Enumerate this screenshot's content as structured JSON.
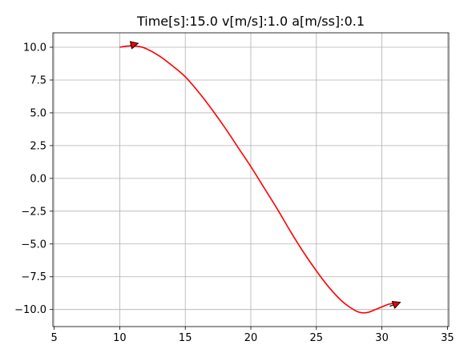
{
  "chart_data": {
    "type": "line",
    "title": "Time[s]:15.0 v[m/s]:1.0 a[m/ss]:0.1",
    "xlabel": "",
    "ylabel": "",
    "xlim": [
      4.9,
      35.1
    ],
    "ylim": [
      -11.3,
      11.1
    ],
    "grid": true,
    "xticks": [
      5,
      10,
      15,
      20,
      25,
      30,
      35
    ],
    "yticks": [
      10.0,
      7.5,
      5.0,
      2.5,
      0.0,
      -2.5,
      -5.0,
      -7.5,
      -10.0
    ],
    "xtick_labels": [
      "5",
      "10",
      "15",
      "20",
      "25",
      "30",
      "35"
    ],
    "ytick_labels": [
      "10.0",
      "7.5",
      "5.0",
      "2.5",
      "0.0",
      "−2.5",
      "−5.0",
      "−7.5",
      "−10.0"
    ],
    "series": [
      {
        "color": "#ff0000",
        "x": [
          10.0,
          10.5,
          11.0,
          11.5,
          12.0,
          13.0,
          14.0,
          15.0,
          16.0,
          17.0,
          18.0,
          19.0,
          20.0,
          21.0,
          22.0,
          23.0,
          24.0,
          25.0,
          26.0,
          27.0,
          28.0,
          28.5,
          29.0,
          29.5,
          30.0,
          30.5,
          31.0
        ],
        "y": [
          10.0,
          10.08,
          10.1,
          10.05,
          9.9,
          9.35,
          8.6,
          7.75,
          6.6,
          5.3,
          3.9,
          2.4,
          0.9,
          -0.7,
          -2.3,
          -4.0,
          -5.6,
          -7.05,
          -8.35,
          -9.4,
          -10.1,
          -10.25,
          -10.2,
          -10.0,
          -9.8,
          -9.6,
          -9.5
        ]
      }
    ],
    "arrows": [
      {
        "x": 10.8,
        "y": 10.15,
        "dx": 0.6,
        "dy": 0.15
      },
      {
        "x": 30.6,
        "y": -9.75,
        "dx": 0.8,
        "dy": 0.3
      }
    ]
  }
}
